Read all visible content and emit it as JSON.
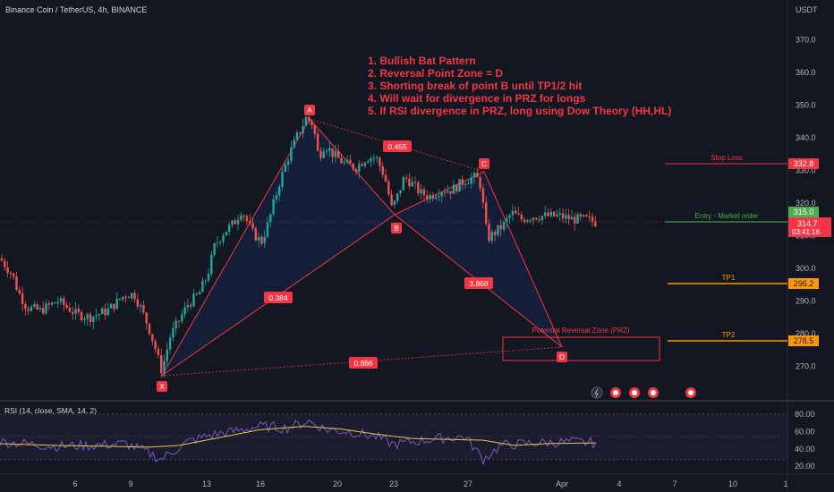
{
  "header": {
    "symbol_line": "Binance Coin / TetherUS, 4h, BINANCE",
    "currency": "USDT"
  },
  "notes": [
    "1. Bullish Bat Pattern",
    "2. Reversal Point Zone = D",
    "3. Shorting break of point B until TP1/2 hit",
    "4. Will wait for divergence in PRZ for longs",
    "5. If RSI divergence in PRZ, long using Dow Theory (HH,HL)"
  ],
  "levels": {
    "stop_loss": {
      "label": "Stop Loss",
      "value": "332.8",
      "color": "#f23645"
    },
    "entry": {
      "label": "Entry - Market order",
      "value": "315.0",
      "color": "#4caf50"
    },
    "tp1": {
      "label": "TP1",
      "value": "296.2",
      "color": "#ff9800"
    },
    "tp2": {
      "label": "TP2",
      "value": "278.5",
      "color": "#ff9800"
    },
    "prz": {
      "label": "Potential Reversal Zone (PRZ)"
    }
  },
  "last_price": {
    "value": "314.7",
    "countdown": "03:41:16",
    "color": "#f23645"
  },
  "pattern": {
    "points": [
      "X",
      "A",
      "B",
      "C",
      "D"
    ],
    "ratios": [
      "0.384",
      "0.455",
      "3.868",
      "0.886"
    ]
  },
  "price_axis": {
    "ticks": [
      "370.0",
      "360.0",
      "350.0",
      "340.0",
      "330.0",
      "320.0",
      "310.0",
      "300.0",
      "290.0",
      "280.0",
      "270.0"
    ]
  },
  "rsi": {
    "label": "RSI (14, close, SMA, 14, 2)",
    "ticks": [
      "80.00",
      "60.00",
      "40.00",
      "20.00"
    ]
  },
  "time_axis": {
    "ticks": [
      "6",
      "9",
      "13",
      "16",
      "20",
      "23",
      "27",
      "Apr",
      "4",
      "7",
      "10",
      "1"
    ]
  },
  "chart_data": {
    "type": "candlestick",
    "title": "Binance Coin / TetherUS, 4h, BINANCE",
    "ylabel": "USDT",
    "ylim": [
      262,
      378
    ],
    "harmonic_pattern": {
      "name": "Bullish Bat",
      "points": [
        {
          "label": "X",
          "date": "Mar 10",
          "price": 267
        },
        {
          "label": "A",
          "date": "Mar 18",
          "price": 347
        },
        {
          "label": "B",
          "date": "Mar 23",
          "price": 317
        },
        {
          "label": "C",
          "date": "Mar 28",
          "price": 330
        },
        {
          "label": "D",
          "date": "Apr 1",
          "price": 275
        }
      ],
      "ratios": {
        "XA_AB": 0.384,
        "AB_BC": 0.455,
        "BC_CD": 3.868,
        "XA_XD": 0.886
      }
    },
    "price_levels": [
      {
        "name": "Stop Loss",
        "value": 332.8
      },
      {
        "name": "Entry - Market order",
        "value": 315.0
      },
      {
        "name": "TP1",
        "value": 296.2
      },
      {
        "name": "TP2",
        "value": 278.5
      }
    ],
    "prz": [
      273,
      280
    ],
    "last_price": 314.7,
    "close_path": [
      [
        0,
        303
      ],
      [
        14,
        298
      ],
      [
        20,
        293
      ],
      [
        30,
        288
      ],
      [
        45,
        287
      ],
      [
        65,
        290
      ],
      [
        85,
        286
      ],
      [
        100,
        285
      ],
      [
        120,
        287
      ],
      [
        140,
        292
      ],
      [
        150,
        292
      ],
      [
        157,
        288
      ],
      [
        166,
        282
      ],
      [
        173,
        276
      ],
      [
        180,
        269
      ],
      [
        184,
        272
      ],
      [
        190,
        279
      ],
      [
        198,
        283
      ],
      [
        210,
        289
      ],
      [
        222,
        292
      ],
      [
        232,
        298
      ],
      [
        240,
        307
      ],
      [
        250,
        311
      ],
      [
        262,
        314
      ],
      [
        270,
        318
      ],
      [
        282,
        311
      ],
      [
        292,
        308
      ],
      [
        300,
        314
      ],
      [
        312,
        326
      ],
      [
        322,
        334
      ],
      [
        333,
        341
      ],
      [
        342,
        346
      ],
      [
        350,
        344
      ],
      [
        356,
        334
      ],
      [
        363,
        338
      ],
      [
        372,
        335
      ],
      [
        385,
        332
      ],
      [
        398,
        331
      ],
      [
        410,
        334
      ],
      [
        420,
        334
      ],
      [
        430,
        328
      ],
      [
        438,
        318
      ],
      [
        444,
        322
      ],
      [
        452,
        328
      ],
      [
        460,
        326
      ],
      [
        470,
        323
      ],
      [
        480,
        322
      ],
      [
        492,
        324
      ],
      [
        505,
        324
      ],
      [
        520,
        327
      ],
      [
        532,
        328
      ],
      [
        538,
        325
      ],
      [
        541,
        316
      ],
      [
        545,
        309
      ],
      [
        553,
        311
      ],
      [
        562,
        313
      ],
      [
        572,
        317
      ],
      [
        582,
        315
      ],
      [
        596,
        316
      ],
      [
        610,
        316
      ],
      [
        625,
        316
      ],
      [
        640,
        315
      ],
      [
        655,
        315
      ],
      [
        667,
        314
      ]
    ],
    "rsi_series": [
      [
        0,
        48
      ],
      [
        30,
        46
      ],
      [
        60,
        43
      ],
      [
        100,
        44
      ],
      [
        140,
        46
      ],
      [
        165,
        36
      ],
      [
        180,
        28
      ],
      [
        190,
        35
      ],
      [
        210,
        48
      ],
      [
        235,
        56
      ],
      [
        260,
        60
      ],
      [
        290,
        66
      ],
      [
        320,
        64
      ],
      [
        345,
        72
      ],
      [
        365,
        62
      ],
      [
        390,
        60
      ],
      [
        420,
        54
      ],
      [
        440,
        45
      ],
      [
        460,
        48
      ],
      [
        490,
        52
      ],
      [
        520,
        54
      ],
      [
        540,
        28
      ],
      [
        560,
        44
      ],
      [
        600,
        47
      ],
      [
        640,
        48
      ],
      [
        667,
        47
      ]
    ],
    "rsi_sma_series": [
      [
        0,
        46
      ],
      [
        60,
        44
      ],
      [
        120,
        43
      ],
      [
        165,
        42
      ],
      [
        200,
        44
      ],
      [
        240,
        52
      ],
      [
        290,
        62
      ],
      [
        340,
        66
      ],
      [
        380,
        63
      ],
      [
        420,
        57
      ],
      [
        460,
        52
      ],
      [
        500,
        51
      ],
      [
        540,
        50
      ],
      [
        575,
        44
      ],
      [
        610,
        46
      ],
      [
        667,
        47
      ]
    ]
  }
}
